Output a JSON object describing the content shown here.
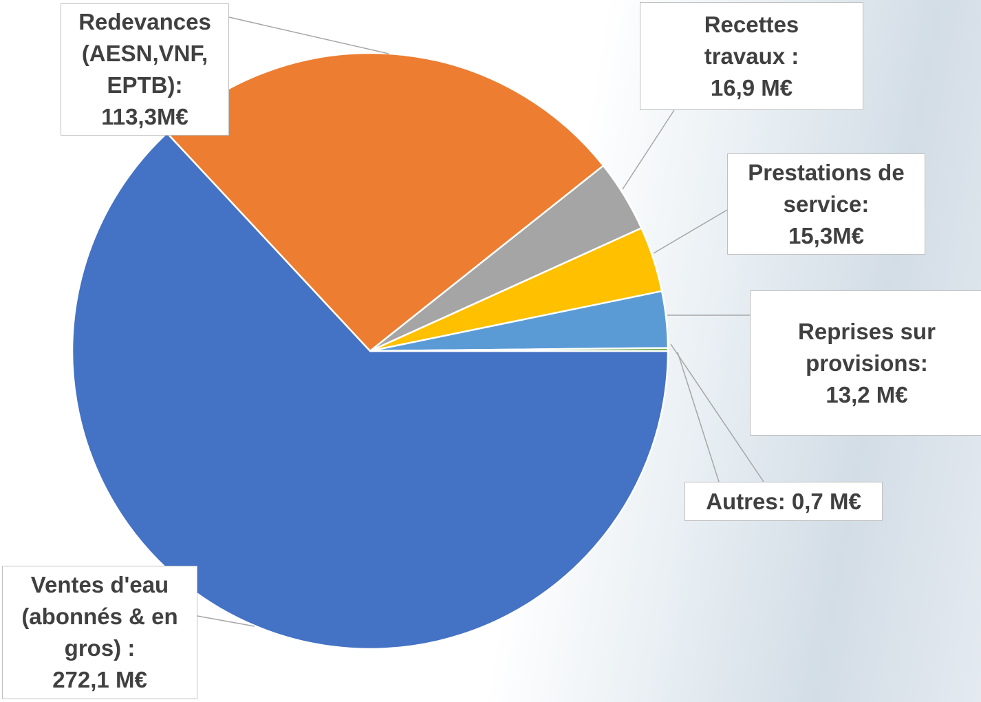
{
  "chart_data": {
    "type": "pie",
    "categories": [
      "Ventes d'eau (abonnés & en gros) :",
      "Redevances (AESN,VNF, EPTB):",
      "Recettes travaux :",
      "Prestations de service:",
      "Reprises sur provisions:",
      "Autres:"
    ],
    "values": [
      272.1,
      113.3,
      16.9,
      15.3,
      13.2,
      0.7
    ],
    "value_labels": [
      "272,1 M€",
      "113,3M€",
      "16,9 M€",
      "15,3M€",
      "13,2 M€",
      "0,7 M€"
    ],
    "colors": [
      "#4472c4",
      "#ed7d31",
      "#a5a5a5",
      "#ffc000",
      "#5b9bd5",
      "#70ad47"
    ]
  }
}
